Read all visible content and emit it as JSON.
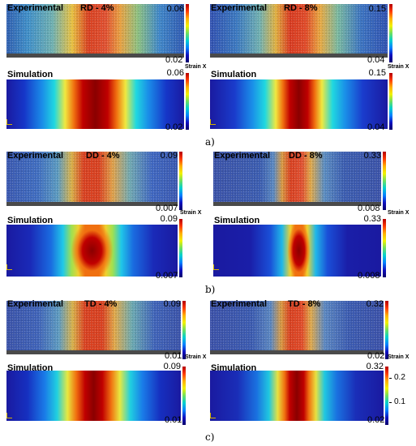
{
  "sections": [
    {
      "caption": "a)",
      "panels": [
        {
          "kind": "exp",
          "title": "Experimental",
          "label": "RD - 4%",
          "max": "0.06",
          "min": "0.02",
          "strain": "Strain X"
        },
        {
          "kind": "exp",
          "title": "Experimental",
          "label": "RD - 8%",
          "max": "0.15",
          "min": "0.04",
          "strain": "Strain X"
        },
        {
          "kind": "sim",
          "title": "Simulation",
          "max": "0.06",
          "min": "0.02"
        },
        {
          "kind": "sim",
          "title": "Simulation",
          "max": "0.15",
          "min": "0.04"
        }
      ]
    },
    {
      "caption": "b)",
      "panels": [
        {
          "kind": "exp",
          "title": "Experimental",
          "label": "DD - 4%",
          "max": "0.09",
          "min": "0.007",
          "strain": "Strain X"
        },
        {
          "kind": "exp",
          "title": "Experimental",
          "label": "DD - 8%",
          "max": "0.33",
          "min": "0.008",
          "strain": "Strain X"
        },
        {
          "kind": "sim",
          "title": "Simulation",
          "max": "0.09",
          "min": "0.007"
        },
        {
          "kind": "sim",
          "title": "Simulation",
          "max": "0.33",
          "min": "0.008"
        }
      ]
    },
    {
      "caption": "c)",
      "panels": [
        {
          "kind": "exp",
          "title": "Experimental",
          "label": "TD - 4%",
          "max": "0.09",
          "min": "0.01",
          "strain": "Strain X"
        },
        {
          "kind": "exp",
          "title": "Experimental",
          "label": "TD - 8%",
          "max": "0.32",
          "min": "0.02",
          "strain": "Strain X"
        },
        {
          "kind": "sim",
          "title": "Simulation",
          "max": "0.09",
          "min": "0.01"
        },
        {
          "kind": "sim",
          "title": "Simulation",
          "max": "0.32",
          "min": "0.02",
          "ticks": [
            "0.2",
            "0.1"
          ]
        }
      ]
    }
  ]
}
